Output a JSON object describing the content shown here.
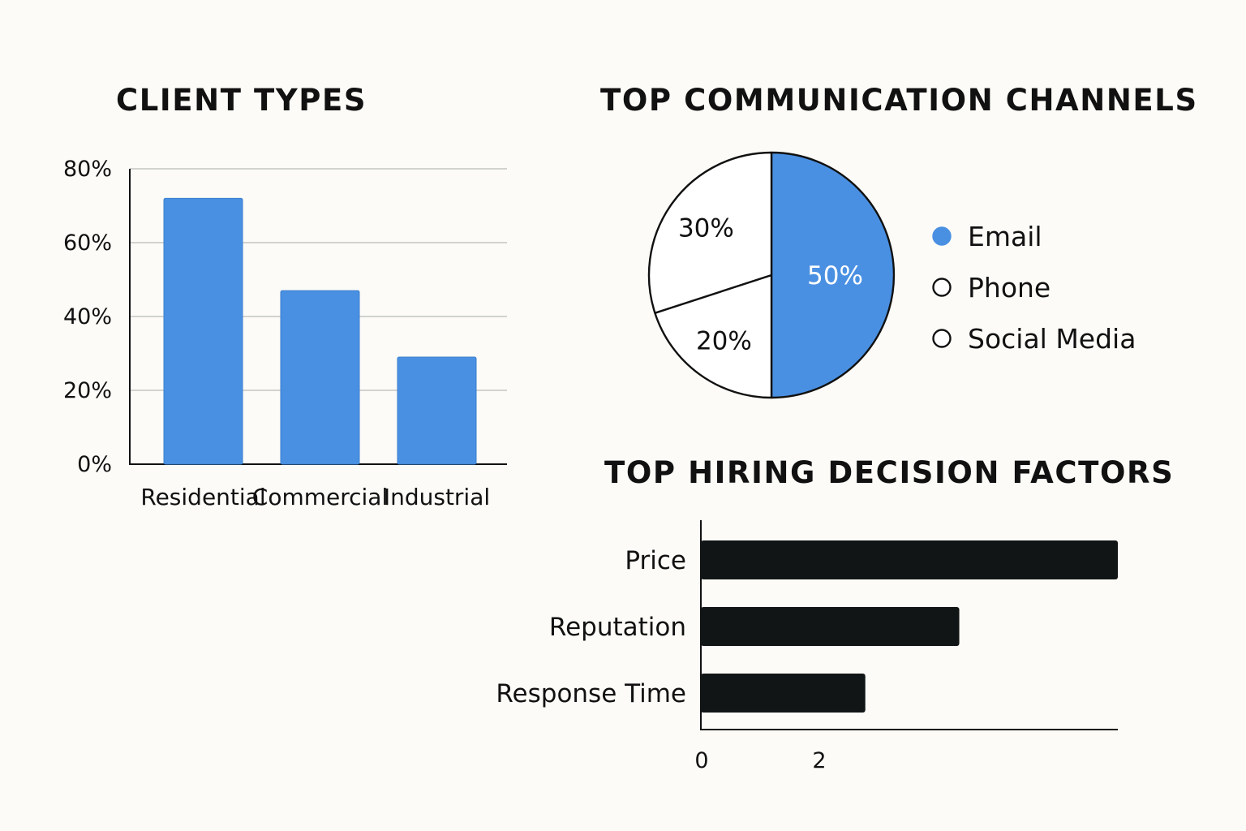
{
  "charts": {
    "client_types": {
      "title": "CLIENT TYPES"
    },
    "channels": {
      "title": "TOP COMMUNICATION CHANNELS"
    },
    "factors": {
      "title": "TOP HIRING DECISION FACTORS"
    }
  },
  "chart_data": [
    {
      "type": "bar",
      "title": "CLIENT TYPES",
      "categories": [
        "Residential",
        "Commercial",
        "Industrial"
      ],
      "values": [
        72,
        47,
        29
      ],
      "unit": "%",
      "ylim": [
        0,
        80
      ],
      "yticks": [
        "0%",
        "20%",
        "40%",
        "60%",
        "80%"
      ],
      "grid": true,
      "color": "#4a90e2"
    },
    {
      "type": "pie",
      "title": "TOP COMMUNICATION CHANNELS",
      "slices": [
        {
          "label": "Email",
          "value": 50,
          "display": "50%",
          "color": "#4a90e2"
        },
        {
          "label": "Social Media",
          "value": 20,
          "display": "20%",
          "color": "#ffffff"
        },
        {
          "label": "Phone",
          "value": 30,
          "display": "30%",
          "color": "#ffffff"
        }
      ],
      "legend": [
        "Email",
        "Phone",
        "Social Media"
      ],
      "legend_position": "right"
    },
    {
      "type": "bar",
      "orientation": "horizontal",
      "title": "TOP HIRING DECISION FACTORS",
      "categories": [
        "Price",
        "Reputation",
        "Response Time"
      ],
      "values": [
        7.1,
        4.4,
        2.8
      ],
      "xticks": [
        "0",
        "2"
      ],
      "xlim": [
        0,
        7.1
      ],
      "color": "#111516"
    }
  ]
}
